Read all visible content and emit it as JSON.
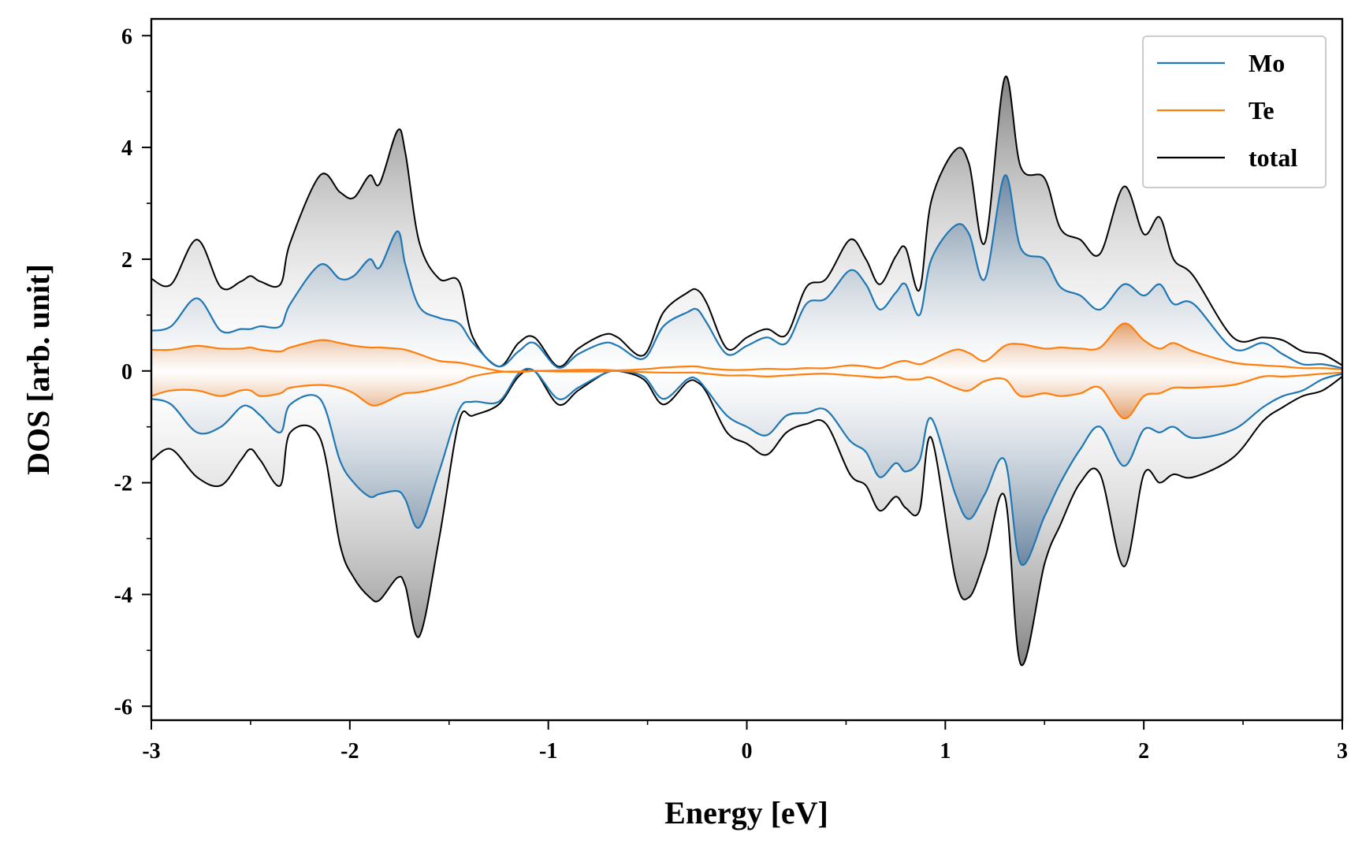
{
  "chart_data": {
    "type": "line",
    "xlabel": "Energy [eV]",
    "ylabel": "DOS [arb. unit]",
    "xlim": [
      -3,
      3
    ],
    "ylim": [
      -6.25,
      6.3
    ],
    "xticks": [
      -3,
      -2,
      -1,
      0,
      1,
      2,
      3
    ],
    "xtick_labels": [
      "-3",
      "-2",
      "-1",
      "0",
      "1",
      "2",
      "3"
    ],
    "yticks": [
      -6,
      -4,
      -2,
      0,
      2,
      4,
      6
    ],
    "ytick_labels": [
      "-6",
      "-4",
      "-2",
      "0",
      "2",
      "4",
      "6"
    ],
    "legend_position": "top-right",
    "grid": false,
    "colors": {
      "Mo": "#1f77b4",
      "Te": "#ff7f0e",
      "total": "#000000",
      "fill_total": "#8c8c8c",
      "fill_mo": "#5b7fa3",
      "fill_te": "#e8914a"
    },
    "x": [
      -3.0,
      -2.9,
      -2.77,
      -2.65,
      -2.55,
      -2.5,
      -2.45,
      -2.35,
      -2.3,
      -2.15,
      -2.05,
      -1.98,
      -1.9,
      -1.85,
      -1.76,
      -1.72,
      -1.65,
      -1.55,
      -1.45,
      -1.38,
      -1.25,
      -1.15,
      -1.07,
      -0.95,
      -0.85,
      -0.72,
      -0.65,
      -0.52,
      -0.42,
      -0.3,
      -0.25,
      -0.2,
      -0.1,
      0.0,
      0.1,
      0.2,
      0.3,
      0.4,
      0.52,
      0.6,
      0.67,
      0.75,
      0.8,
      0.87,
      0.93,
      1.05,
      1.12,
      1.2,
      1.3,
      1.38,
      1.5,
      1.58,
      1.68,
      1.78,
      1.9,
      2.0,
      2.08,
      2.15,
      2.25,
      2.45,
      2.6,
      2.7,
      2.8,
      2.9,
      3.0
    ],
    "series": [
      {
        "name": "Mo",
        "values_up": [
          0.72,
          0.8,
          1.3,
          0.72,
          0.75,
          0.75,
          0.8,
          0.8,
          1.2,
          1.9,
          1.65,
          1.7,
          2.0,
          1.85,
          2.5,
          1.9,
          1.15,
          0.95,
          0.85,
          0.5,
          0.08,
          0.35,
          0.5,
          0.06,
          0.3,
          0.5,
          0.45,
          0.22,
          0.8,
          1.05,
          1.1,
          0.85,
          0.3,
          0.45,
          0.6,
          0.5,
          1.2,
          1.3,
          1.8,
          1.55,
          1.1,
          1.4,
          1.55,
          1.0,
          2.0,
          2.6,
          2.45,
          1.65,
          3.5,
          2.2,
          2.0,
          1.5,
          1.35,
          1.1,
          1.55,
          1.35,
          1.55,
          1.2,
          1.2,
          0.4,
          0.5,
          0.3,
          0.12,
          0.12,
          0.05
        ],
        "values_down": [
          -0.5,
          -0.6,
          -1.1,
          -1.0,
          -0.65,
          -0.65,
          -0.8,
          -1.1,
          -0.6,
          -0.5,
          -1.6,
          -2.0,
          -2.25,
          -2.2,
          -2.15,
          -2.3,
          -2.8,
          -1.8,
          -0.7,
          -0.55,
          -0.55,
          -0.05,
          0.0,
          -0.5,
          -0.3,
          -0.05,
          0.0,
          -0.1,
          -0.5,
          -0.15,
          -0.15,
          -0.35,
          -0.8,
          -1.0,
          -1.15,
          -0.8,
          -0.75,
          -0.7,
          -1.25,
          -1.45,
          -1.9,
          -1.65,
          -1.8,
          -1.6,
          -0.85,
          -2.2,
          -2.65,
          -2.2,
          -1.6,
          -3.45,
          -2.6,
          -2.0,
          -1.4,
          -1.0,
          -1.7,
          -1.05,
          -1.1,
          -1.0,
          -1.2,
          -1.05,
          -0.65,
          -0.45,
          -0.35,
          -0.15,
          -0.05
        ]
      },
      {
        "name": "Te",
        "values_up": [
          0.38,
          0.38,
          0.45,
          0.4,
          0.4,
          0.42,
          0.38,
          0.35,
          0.42,
          0.55,
          0.5,
          0.45,
          0.42,
          0.42,
          0.4,
          0.38,
          0.3,
          0.18,
          0.15,
          0.1,
          0.0,
          -0.02,
          0.0,
          0.01,
          0.02,
          0.02,
          0.01,
          0.03,
          0.06,
          0.08,
          0.08,
          0.05,
          0.02,
          0.02,
          0.04,
          0.03,
          0.05,
          0.05,
          0.1,
          0.08,
          0.05,
          0.15,
          0.18,
          0.12,
          0.2,
          0.38,
          0.32,
          0.18,
          0.45,
          0.48,
          0.4,
          0.42,
          0.4,
          0.42,
          0.85,
          0.55,
          0.4,
          0.5,
          0.35,
          0.15,
          0.1,
          0.08,
          0.05,
          0.05,
          0.03
        ],
        "values_down": [
          -0.45,
          -0.35,
          -0.35,
          -0.45,
          -0.35,
          -0.35,
          -0.45,
          -0.4,
          -0.3,
          -0.25,
          -0.3,
          -0.4,
          -0.6,
          -0.6,
          -0.45,
          -0.4,
          -0.38,
          -0.3,
          -0.2,
          -0.1,
          -0.02,
          -0.01,
          0.0,
          -0.01,
          -0.01,
          -0.01,
          0.0,
          -0.02,
          -0.03,
          -0.03,
          -0.03,
          -0.05,
          -0.08,
          -0.08,
          -0.1,
          -0.08,
          -0.06,
          -0.05,
          -0.08,
          -0.1,
          -0.12,
          -0.1,
          -0.15,
          -0.15,
          -0.12,
          -0.3,
          -0.35,
          -0.18,
          -0.15,
          -0.45,
          -0.4,
          -0.45,
          -0.4,
          -0.3,
          -0.85,
          -0.45,
          -0.4,
          -0.3,
          -0.3,
          -0.25,
          -0.1,
          -0.1,
          -0.08,
          -0.05,
          -0.03
        ]
      },
      {
        "name": "total",
        "values_up": [
          1.65,
          1.55,
          2.35,
          1.5,
          1.6,
          1.7,
          1.6,
          1.55,
          2.3,
          3.5,
          3.2,
          3.1,
          3.5,
          3.35,
          4.3,
          3.9,
          2.3,
          1.65,
          1.6,
          0.6,
          0.08,
          0.5,
          0.6,
          0.08,
          0.4,
          0.65,
          0.6,
          0.28,
          1.05,
          1.4,
          1.45,
          1.2,
          0.4,
          0.6,
          0.75,
          0.65,
          1.5,
          1.65,
          2.35,
          2.0,
          1.55,
          2.05,
          2.2,
          1.45,
          3.05,
          3.95,
          3.7,
          2.3,
          5.25,
          3.65,
          3.45,
          2.55,
          2.35,
          2.1,
          3.3,
          2.45,
          2.75,
          2.0,
          1.7,
          0.6,
          0.6,
          0.55,
          0.35,
          0.3,
          0.1
        ],
        "values_down": [
          -1.6,
          -1.4,
          -1.9,
          -2.05,
          -1.6,
          -1.4,
          -1.6,
          -2.05,
          -1.1,
          -1.2,
          -3.1,
          -3.7,
          -4.05,
          -4.1,
          -3.7,
          -3.85,
          -4.75,
          -3.0,
          -0.9,
          -0.8,
          -0.6,
          -0.1,
          0.0,
          -0.6,
          -0.35,
          -0.05,
          0.0,
          -0.15,
          -0.6,
          -0.2,
          -0.2,
          -0.4,
          -1.1,
          -1.3,
          -1.5,
          -1.1,
          -0.95,
          -0.95,
          -1.85,
          -2.05,
          -2.5,
          -2.25,
          -2.45,
          -2.5,
          -1.2,
          -3.7,
          -4.05,
          -3.35,
          -2.25,
          -5.25,
          -3.45,
          -2.75,
          -2.0,
          -1.85,
          -3.5,
          -1.85,
          -2.0,
          -1.85,
          -1.9,
          -1.55,
          -0.9,
          -0.65,
          -0.45,
          -0.35,
          -0.1
        ]
      }
    ]
  }
}
